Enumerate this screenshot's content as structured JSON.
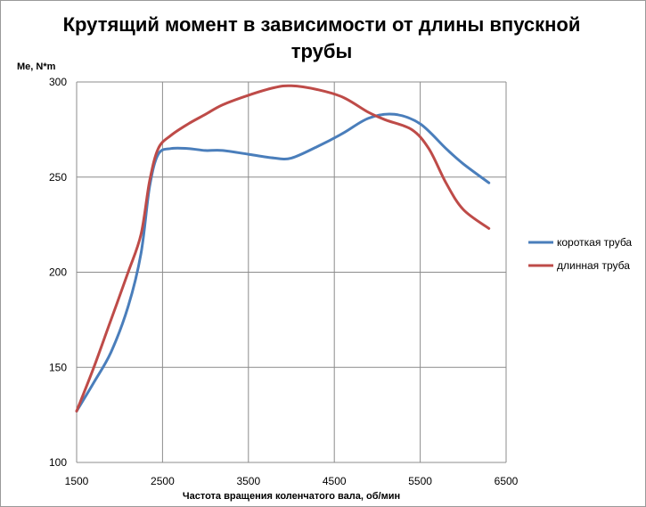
{
  "chart_data": {
    "type": "line",
    "title_line1": "Крутящий момент в зависимости от длины впускной",
    "title_line2": "трубы",
    "ylabel": "Me, N*m",
    "xlabel": "Частота вращения коленчатого вала, об/мин",
    "xlim": [
      1500,
      6500
    ],
    "ylim": [
      100,
      300
    ],
    "x_ticks": [
      1500,
      2500,
      3500,
      4500,
      5500,
      6500
    ],
    "y_ticks": [
      100,
      150,
      200,
      250,
      300
    ],
    "x_tick_labels": [
      "1500",
      "2500",
      "3500",
      "4500",
      "5500",
      "6500"
    ],
    "y_tick_labels": [
      "100",
      "150",
      "200",
      "250",
      "300"
    ],
    "grid": true,
    "legend_position": "right",
    "series": [
      {
        "name": "короткая труба",
        "color": "#4a7ebb",
        "x": [
          1500,
          1700,
          1900,
          2100,
          2250,
          2350,
          2450,
          2600,
          2800,
          3000,
          3200,
          3500,
          3800,
          4000,
          4300,
          4600,
          4900,
          5200,
          5500,
          5800,
          6000,
          6300
        ],
        "y": [
          127,
          142,
          158,
          182,
          210,
          245,
          262,
          265,
          265,
          264,
          264,
          262,
          260,
          260,
          266,
          273,
          281,
          283,
          278,
          265,
          257,
          247
        ]
      },
      {
        "name": "длинная труба",
        "color": "#be4b48",
        "x": [
          1500,
          1700,
          1900,
          2100,
          2250,
          2350,
          2450,
          2600,
          2800,
          3000,
          3200,
          3500,
          3800,
          4000,
          4300,
          4600,
          4900,
          5100,
          5400,
          5600,
          5800,
          6000,
          6300
        ],
        "y": [
          127,
          150,
          175,
          200,
          220,
          248,
          265,
          272,
          278,
          283,
          288,
          293,
          297,
          298,
          296,
          292,
          284,
          280,
          275,
          265,
          247,
          233,
          223
        ]
      }
    ]
  }
}
